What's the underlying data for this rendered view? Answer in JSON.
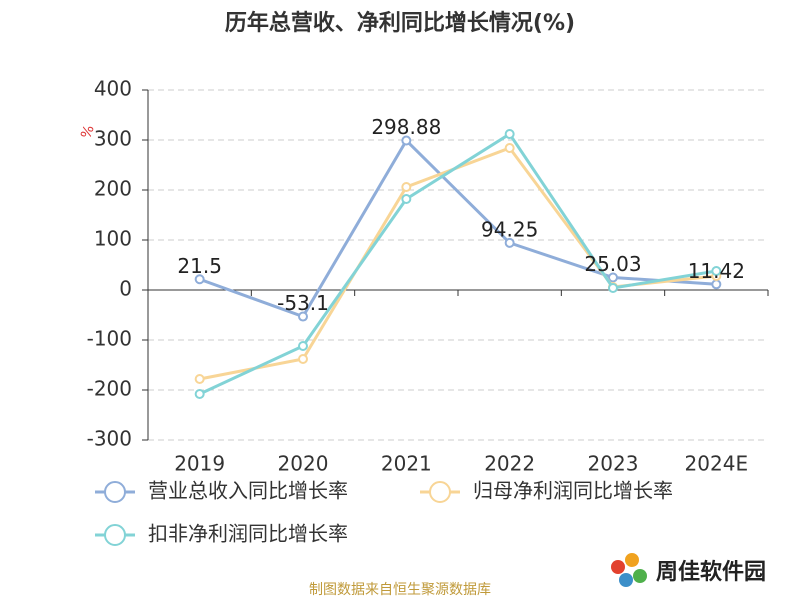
{
  "chart_data": {
    "type": "line",
    "title": "历年总营收、净利同比增长情况(%)",
    "y_label": "%",
    "categories": [
      "2019",
      "2020",
      "2021",
      "2022",
      "2023",
      "2024E"
    ],
    "series": [
      {
        "name": "营业总收入同比增长率",
        "color": "#8fadd9",
        "values": [
          21.5,
          -53.1,
          298.88,
          94.25,
          25.03,
          11.42
        ],
        "show_labels": true
      },
      {
        "name": "归母净利润同比增长率",
        "color": "#f8d596",
        "values": [
          -178,
          -138,
          206,
          284,
          6,
          28
        ],
        "show_labels": false
      },
      {
        "name": "扣非净利润同比增长率",
        "color": "#82d3d6",
        "values": [
          -208,
          -112,
          182,
          312,
          4,
          38
        ],
        "show_labels": false
      }
    ],
    "ylim": [
      -300,
      400
    ],
    "yticks": [
      -300,
      -200,
      -100,
      0,
      100,
      200,
      300,
      400
    ],
    "grid": true,
    "source": "制图数据来自恒生聚源数据库",
    "watermark": "周佳软件园"
  }
}
